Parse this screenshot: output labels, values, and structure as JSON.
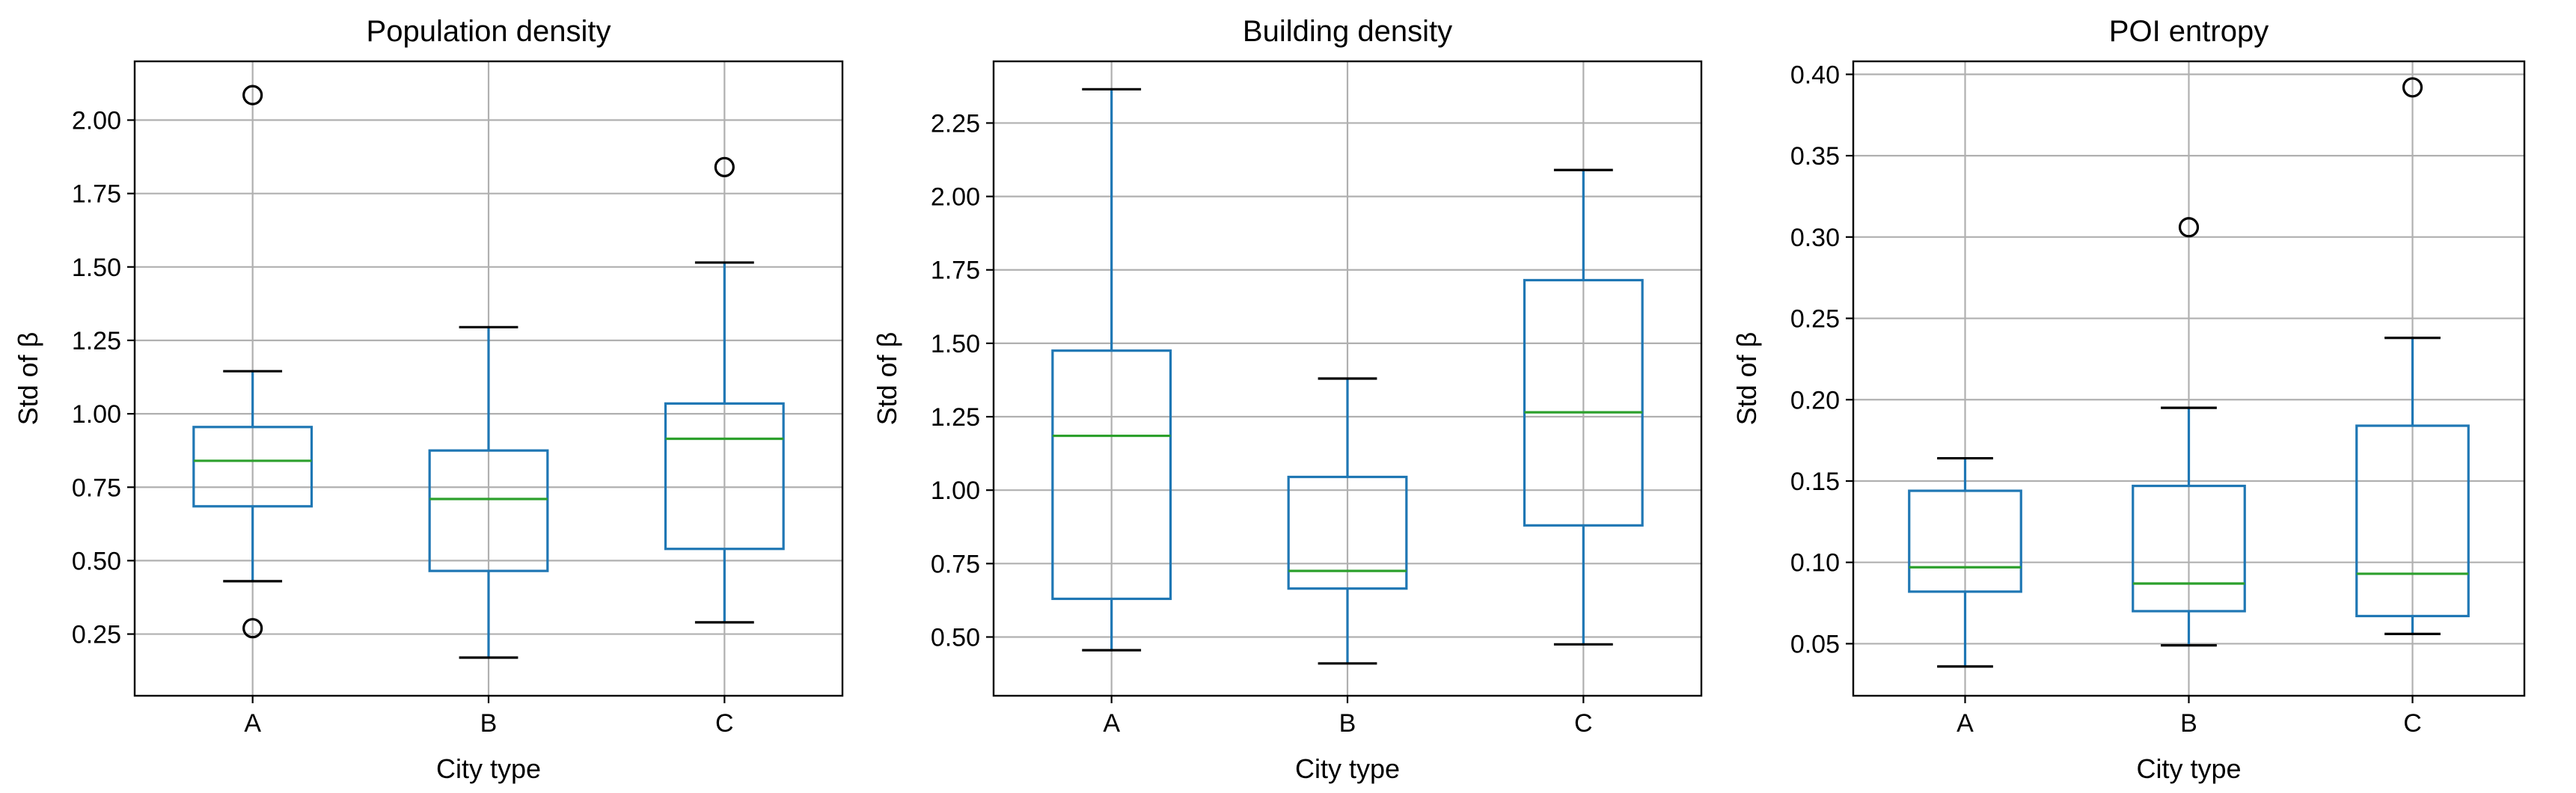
{
  "figure": {
    "background": "#ffffff"
  },
  "style": {
    "box_color": "#1f77b4",
    "median_color": "#2ca02c",
    "grid_color": "#b0b0b0",
    "axis_color": "#000000",
    "flier_color": "#000000"
  },
  "chart_data": [
    {
      "type": "boxplot",
      "title": "Population density",
      "xlabel": "City type",
      "ylabel": "Std of β",
      "categories": [
        "A",
        "B",
        "C"
      ],
      "ylim": [
        0.04,
        2.2
      ],
      "yticks": [
        0.25,
        0.5,
        0.75,
        1.0,
        1.25,
        1.5,
        1.75,
        2.0
      ],
      "ytick_labels": [
        "0.25",
        "0.50",
        "0.75",
        "1.00",
        "1.25",
        "1.50",
        "1.75",
        "2.00"
      ],
      "grid": true,
      "boxes": [
        {
          "category": "A",
          "whisker_low": 0.43,
          "q1": 0.685,
          "median": 0.84,
          "q3": 0.955,
          "whisker_high": 1.145,
          "fliers": [
            2.085,
            0.27
          ]
        },
        {
          "category": "B",
          "whisker_low": 0.17,
          "q1": 0.465,
          "median": 0.71,
          "q3": 0.875,
          "whisker_high": 1.295,
          "fliers": []
        },
        {
          "category": "C",
          "whisker_low": 0.29,
          "q1": 0.54,
          "median": 0.915,
          "q3": 1.035,
          "whisker_high": 1.515,
          "fliers": [
            1.84
          ]
        }
      ]
    },
    {
      "type": "boxplot",
      "title": "Building density",
      "xlabel": "City type",
      "ylabel": "Std of β",
      "categories": [
        "A",
        "B",
        "C"
      ],
      "ylim": [
        0.3,
        2.46
      ],
      "yticks": [
        0.5,
        0.75,
        1.0,
        1.25,
        1.5,
        1.75,
        2.0,
        2.25
      ],
      "ytick_labels": [
        "0.50",
        "0.75",
        "1.00",
        "1.25",
        "1.50",
        "1.75",
        "2.00",
        "2.25"
      ],
      "grid": true,
      "boxes": [
        {
          "category": "A",
          "whisker_low": 0.455,
          "q1": 0.63,
          "median": 1.185,
          "q3": 1.475,
          "whisker_high": 2.365,
          "fliers": []
        },
        {
          "category": "B",
          "whisker_low": 0.41,
          "q1": 0.665,
          "median": 0.725,
          "q3": 1.045,
          "whisker_high": 1.38,
          "fliers": []
        },
        {
          "category": "C",
          "whisker_low": 0.475,
          "q1": 0.88,
          "median": 1.265,
          "q3": 1.715,
          "whisker_high": 2.09,
          "fliers": []
        }
      ]
    },
    {
      "type": "boxplot",
      "title": "POI entropy",
      "xlabel": "City type",
      "ylabel": "Std of β",
      "categories": [
        "A",
        "B",
        "C"
      ],
      "ylim": [
        0.018,
        0.408
      ],
      "yticks": [
        0.05,
        0.1,
        0.15,
        0.2,
        0.25,
        0.3,
        0.35,
        0.4
      ],
      "ytick_labels": [
        "0.05",
        "0.10",
        "0.15",
        "0.20",
        "0.25",
        "0.30",
        "0.35",
        "0.40"
      ],
      "grid": true,
      "boxes": [
        {
          "category": "A",
          "whisker_low": 0.036,
          "q1": 0.082,
          "median": 0.097,
          "q3": 0.144,
          "whisker_high": 0.164,
          "fliers": []
        },
        {
          "category": "B",
          "whisker_low": 0.049,
          "q1": 0.07,
          "median": 0.087,
          "q3": 0.147,
          "whisker_high": 0.195,
          "fliers": [
            0.306
          ]
        },
        {
          "category": "C",
          "whisker_low": 0.056,
          "q1": 0.067,
          "median": 0.093,
          "q3": 0.184,
          "whisker_high": 0.238,
          "fliers": [
            0.392
          ]
        }
      ]
    }
  ]
}
